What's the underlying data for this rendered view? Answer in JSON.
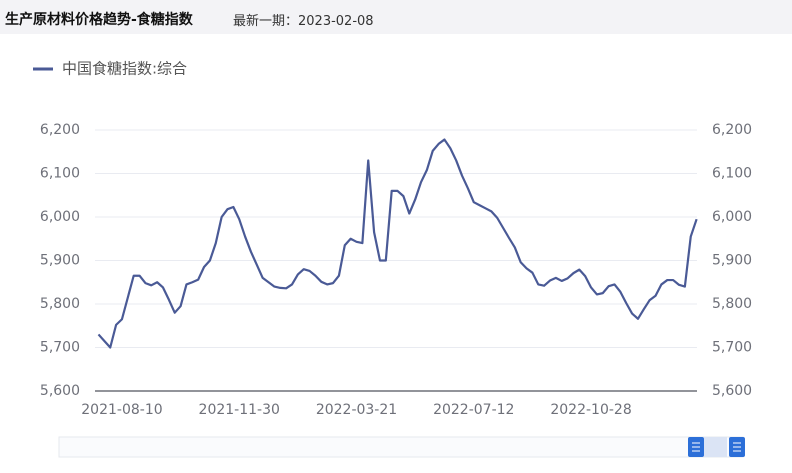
{
  "header": {
    "title": "生产原材料价格趋势-食糖指数",
    "subtitle": "最新一期：2023-02-08"
  },
  "chart_data": {
    "type": "line",
    "categories": [
      null,
      null,
      null,
      null,
      "2021-08-10",
      null,
      null,
      null,
      null,
      null,
      null,
      null,
      null,
      null,
      null,
      null,
      null,
      null,
      null,
      null,
      null,
      null,
      null,
      null,
      "2021-11-30",
      null,
      null,
      null,
      null,
      null,
      null,
      null,
      null,
      null,
      null,
      null,
      null,
      null,
      null,
      null,
      null,
      null,
      null,
      null,
      "2022-03-21",
      null,
      null,
      null,
      null,
      null,
      null,
      null,
      null,
      null,
      null,
      null,
      null,
      null,
      null,
      null,
      null,
      null,
      null,
      null,
      "2022-07-12",
      null,
      null,
      null,
      null,
      null,
      null,
      null,
      null,
      null,
      null,
      null,
      null,
      null,
      null,
      null,
      null,
      null,
      null,
      null,
      "2022-10-28",
      null,
      null,
      null,
      null,
      null,
      null,
      null,
      null,
      null,
      null,
      null,
      null,
      null,
      null,
      null,
      null,
      null,
      null
    ],
    "series": [
      {
        "name": "中国食糖指数:综合",
        "color": "#4a5a96",
        "values": [
          5730,
          5715,
          5700,
          5752,
          5765,
          5815,
          5865,
          5865,
          5848,
          5843,
          5850,
          5838,
          5810,
          5780,
          5795,
          5845,
          5850,
          5856,
          5885,
          5900,
          5940,
          6000,
          6018,
          6023,
          5995,
          5955,
          5920,
          5890,
          5860,
          5850,
          5840,
          5837,
          5836,
          5845,
          5868,
          5880,
          5876,
          5865,
          5851,
          5845,
          5848,
          5865,
          5935,
          5950,
          5943,
          5940,
          6130,
          5965,
          5900,
          5900,
          6060,
          6060,
          6048,
          6008,
          6040,
          6080,
          6108,
          6152,
          6168,
          6178,
          6158,
          6130,
          6095,
          6066,
          6034,
          6027,
          6020,
          6013,
          5998,
          5975,
          5952,
          5930,
          5896,
          5882,
          5872,
          5845,
          5842,
          5854,
          5860,
          5853,
          5859,
          5871,
          5879,
          5864,
          5838,
          5822,
          5825,
          5841,
          5845,
          5828,
          5802,
          5778,
          5766,
          5788,
          5809,
          5819,
          5845,
          5855,
          5855,
          5844,
          5840,
          5955,
          5995
        ]
      }
    ],
    "ylim": [
      5600,
      6200
    ],
    "yticks": [
      {
        "value": 5600,
        "label": "5,600"
      },
      {
        "value": 5700,
        "label": "5,700"
      },
      {
        "value": 5800,
        "label": "5,800"
      },
      {
        "value": 5900,
        "label": "5,900"
      },
      {
        "value": 6000,
        "label": "6,000"
      },
      {
        "value": 6100,
        "label": "6,100"
      },
      {
        "value": 6200,
        "label": "6,200"
      }
    ],
    "y2lim": [
      5600,
      6200
    ],
    "y2ticks": [
      {
        "value": 5600,
        "label": "5,600"
      },
      {
        "value": 5700,
        "label": "5,700"
      },
      {
        "value": 5800,
        "label": "5,800"
      },
      {
        "value": 5900,
        "label": "5,900"
      },
      {
        "value": 6000,
        "label": "6,000"
      },
      {
        "value": 6100,
        "label": "6,100"
      },
      {
        "value": 6200,
        "label": "6,200"
      }
    ],
    "grid": true,
    "legend": "top-left"
  }
}
